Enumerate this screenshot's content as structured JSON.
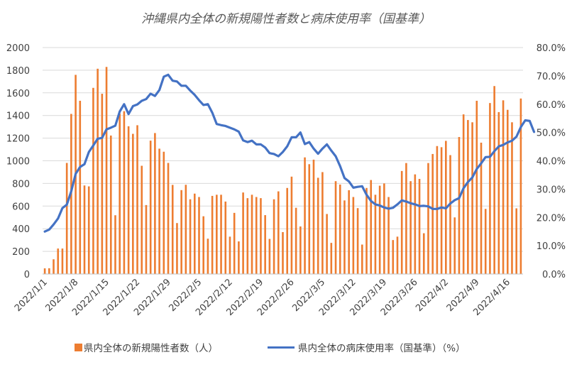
{
  "chart_data": {
    "type": "bar",
    "title": "沖縄県内全体の新規陽性者数と病床使用率（国基準）",
    "grid": true,
    "legend_position": "bottom",
    "x_ticks": [
      "2022/1/1",
      "2022/1/8",
      "2022/1/15",
      "2022/1/22",
      "2022/1/29",
      "2022/2/5",
      "2022/2/12",
      "2022/2/19",
      "2022/2/26",
      "2022/3/5",
      "2022/3/12",
      "2022/3/19",
      "2022/3/26",
      "2022/4/2",
      "2022/4/9",
      "2022/4/16"
    ],
    "y_left": {
      "min": 0,
      "max": 2000,
      "ticks": [
        "0",
        "200",
        "400",
        "600",
        "800",
        "1000",
        "1200",
        "1400",
        "1600",
        "1800",
        "2000"
      ]
    },
    "y_right": {
      "min": 0,
      "max": 80,
      "ticks": [
        "0.0%",
        "10.0%",
        "20.0%",
        "30.0%",
        "40.0%",
        "50.0%",
        "60.0%",
        "70.0%",
        "80.0%"
      ]
    },
    "series": [
      {
        "name": "県内全体の新規陽性者数（人）",
        "type": "bar",
        "axis": "left",
        "color": "#ED7D31",
        "values": [
          50,
          51,
          130,
          225,
          225,
          981,
          1414,
          1759,
          1530,
          782,
          774,
          1644,
          1813,
          1592,
          1829,
          1223,
          519,
          1416,
          1438,
          1305,
          1238,
          1314,
          956,
          609,
          1178,
          1245,
          1107,
          1080,
          981,
          787,
          450,
          741,
          788,
          660,
          710,
          680,
          510,
          312,
          690,
          700,
          700,
          640,
          330,
          540,
          288,
          720,
          670,
          700,
          680,
          670,
          520,
          310,
          660,
          730,
          370,
          760,
          860,
          585,
          420,
          1030,
          970,
          1010,
          850,
          900,
          530,
          275,
          820,
          790,
          650,
          740,
          680,
          582,
          260,
          760,
          830,
          700,
          780,
          800,
          680,
          300,
          330,
          910,
          980,
          820,
          880,
          840,
          360,
          980,
          1060,
          1130,
          1120,
          1176,
          1050,
          500,
          1210,
          1410,
          1360,
          1340,
          1530,
          1160,
          575,
          1510,
          1660,
          1430,
          1534,
          1450,
          1340,
          580,
          1550
        ]
      },
      {
        "name": "県内全体の病床使用率（国基準）（%）",
        "type": "line",
        "axis": "right",
        "color": "#4472C4",
        "values": [
          15,
          15.7,
          17.5,
          19.6,
          23.3,
          24.5,
          29.2,
          35.4,
          37.8,
          38.8,
          43.1,
          45.4,
          47.8,
          48.1,
          51.1,
          51.7,
          52.4,
          57.4,
          60.0,
          56.5,
          59.3,
          59.9,
          61.2,
          61.8,
          63.7,
          62.9,
          65.0,
          69.7,
          70.4,
          68.3,
          68.0,
          66.5,
          66.5,
          64.8,
          63.3,
          61.4,
          59.7,
          60.0,
          57.0,
          53.0,
          52.6,
          52.3,
          51.7,
          51.1,
          50.3,
          47.2,
          46.6,
          47.1,
          45.8,
          45.8,
          44.7,
          42.7,
          42.4,
          41.6,
          43.1,
          45.1,
          48.3,
          48.3,
          50.0,
          45.9,
          46.6,
          44.3,
          42.5,
          44.3,
          45.8,
          43.6,
          41.6,
          38.1,
          33.9,
          32.7,
          30.5,
          30.8,
          31.0,
          28.0,
          25.8,
          24.6,
          24.2,
          23.5,
          23.1,
          23.4,
          24.6,
          26.0,
          25.6,
          25.0,
          24.6,
          24.0,
          24.1,
          23.9,
          23.0,
          23.0,
          23.5,
          23.2,
          24.9,
          26.1,
          26.8,
          30.3,
          32.5,
          34.1,
          37.1,
          39.1,
          41.3,
          41.4,
          43.4,
          45.1,
          45.6,
          46.5,
          47.1,
          48.5,
          51.9,
          54.3,
          54.1,
          50.2
        ]
      }
    ]
  },
  "legend": {
    "bar_label": "県内全体の新規陽性者数（人）",
    "line_label": "県内全体の病床使用率（国基準）（%）"
  }
}
